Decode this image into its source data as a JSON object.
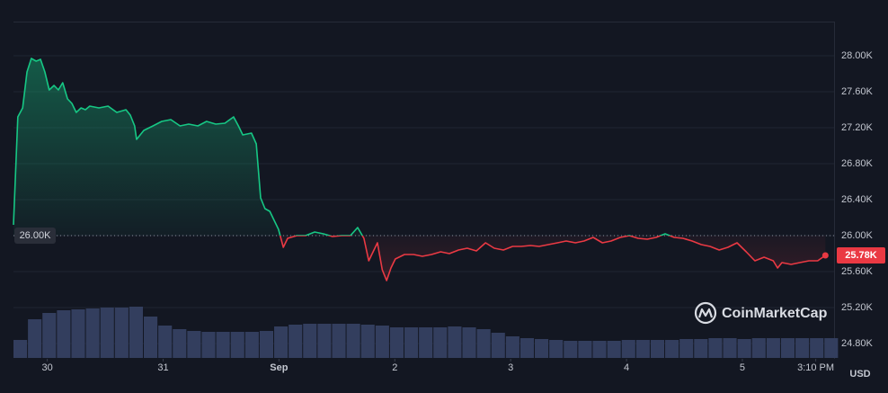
{
  "chart_data": {
    "type": "line",
    "price": {
      "x": [
        0,
        0.9,
        1.9,
        2.8,
        3.7,
        4.7,
        5.6,
        6.5,
        7.4,
        8.4,
        9.3,
        10.2,
        11.2,
        12.1,
        13.0,
        14.0,
        14.9,
        15.8,
        17.7,
        19.6,
        21.4,
        23.3,
        24.2,
        25.1,
        25.5,
        27.0,
        28.9,
        30.7,
        32.6,
        34.5,
        36.3,
        38.2,
        40.0,
        41.9,
        43.8,
        45.6,
        46.6,
        47.5,
        49.3,
        50.3,
        51.2,
        52.1,
        53.1,
        54.0,
        54.9,
        55.9,
        56.8,
        58.7,
        60.5,
        62.4,
        64.2,
        66.1,
        68.0,
        69.8,
        71.3,
        72.6,
        73.6,
        74.5,
        75.4,
        76.4,
        77.3,
        78.2,
        79.1,
        81.0,
        82.9,
        84.7,
        86.6,
        88.5,
        90.3,
        92.2,
        94.0,
        95.9,
        97.8,
        99.6,
        101.5,
        103.4,
        105.2,
        107.1,
        108.9,
        110.8,
        112.7,
        114.5,
        116.4,
        118.2,
        120.1,
        122.0,
        123.8,
        125.7,
        127.6,
        129.4,
        131.3,
        133.1,
        135.0,
        136.9,
        138.7,
        140.6,
        142.5,
        144.3,
        146.2,
        148.0,
        149.9,
        151.8,
        153.6,
        155.5,
        157.4,
        158.3,
        159.2,
        161.1,
        162.9,
        164.8,
        166.6,
        168.2
      ],
      "values": [
        26120,
        27320,
        27420,
        27820,
        27970,
        27940,
        27960,
        27820,
        27620,
        27670,
        27620,
        27700,
        27520,
        27470,
        27370,
        27420,
        27400,
        27440,
        27420,
        27440,
        27370,
        27400,
        27340,
        27220,
        27070,
        27170,
        27220,
        27270,
        27290,
        27220,
        27240,
        27220,
        27270,
        27240,
        27250,
        27320,
        27220,
        27120,
        27140,
        27020,
        26420,
        26300,
        26270,
        26170,
        26070,
        25870,
        25970,
        26000,
        26000,
        26040,
        26020,
        25990,
        26000,
        26000,
        26090,
        25970,
        25720,
        25820,
        25920,
        25620,
        25500,
        25640,
        25740,
        25790,
        25790,
        25770,
        25790,
        25820,
        25800,
        25840,
        25860,
        25830,
        25920,
        25860,
        25840,
        25880,
        25880,
        25890,
        25880,
        25900,
        25920,
        25940,
        25920,
        25940,
        25980,
        25920,
        25940,
        25980,
        26000,
        25970,
        25960,
        25980,
        26020,
        25980,
        25970,
        25940,
        25900,
        25880,
        25840,
        25870,
        25920,
        25820,
        25720,
        25760,
        25720,
        25640,
        25700,
        25680,
        25700,
        25720,
        25720,
        25780
      ]
    },
    "volume": {
      "axis": "y2",
      "x": [
        0,
        3,
        6,
        9,
        12,
        15,
        18,
        21,
        24,
        27,
        30,
        33,
        36,
        39,
        42,
        45,
        48,
        51,
        54,
        57,
        60,
        63,
        66,
        69,
        72,
        75,
        78,
        81,
        84,
        87,
        90,
        93,
        96,
        99,
        102,
        105,
        108,
        111,
        114,
        117,
        120,
        123,
        126,
        129,
        132,
        135,
        138,
        141,
        144,
        147,
        150,
        153,
        156,
        159,
        162,
        165,
        168
      ],
      "values": [
        20,
        43,
        50,
        53,
        54,
        55,
        56,
        56,
        57,
        46,
        36,
        32,
        30,
        29,
        29,
        29,
        29,
        30,
        35,
        37,
        38,
        38,
        38,
        38,
        37,
        36,
        34,
        34,
        34,
        34,
        35,
        34,
        32,
        28,
        24,
        22,
        21,
        20,
        19,
        19,
        19,
        19,
        20,
        20,
        20,
        20,
        21,
        21,
        22,
        22,
        21,
        22,
        22,
        22,
        22,
        22,
        22
      ]
    },
    "up_color": "#16c784",
    "down_color": "#ea3943",
    "volume_color": "#333e5e",
    "baseline": {
      "value": 26000,
      "label": "26.00K"
    },
    "last_label": "25.78K",
    "xlim": [
      0,
      170
    ],
    "xticks": [
      {
        "value": 7,
        "label": "30"
      },
      {
        "value": 31,
        "label": "31"
      },
      {
        "value": 55,
        "label": "Sep"
      },
      {
        "value": 79,
        "label": "2"
      },
      {
        "value": 103,
        "label": "3"
      },
      {
        "value": 127,
        "label": "4"
      },
      {
        "value": 151,
        "label": "5"
      },
      {
        "value": 166.2,
        "label": "3:10 PM"
      }
    ],
    "ylim": [
      24630,
      28370
    ],
    "yticks": [
      {
        "value": 24800,
        "label": "24.80K"
      },
      {
        "value": 25200,
        "label": "25.20K"
      },
      {
        "value": 25600,
        "label": "25.60K"
      },
      {
        "value": 26000,
        "label": "26.00K"
      },
      {
        "value": 26400,
        "label": "26.40K"
      },
      {
        "value": 26800,
        "label": "26.80K"
      },
      {
        "value": 27200,
        "label": "27.20K"
      },
      {
        "value": 27600,
        "label": "27.60K"
      },
      {
        "value": 28000,
        "label": "28.00K"
      }
    ],
    "y2lim": [
      0,
      374
    ],
    "grid": true,
    "currency": "USD",
    "watermark": "CoinMarketCap"
  }
}
